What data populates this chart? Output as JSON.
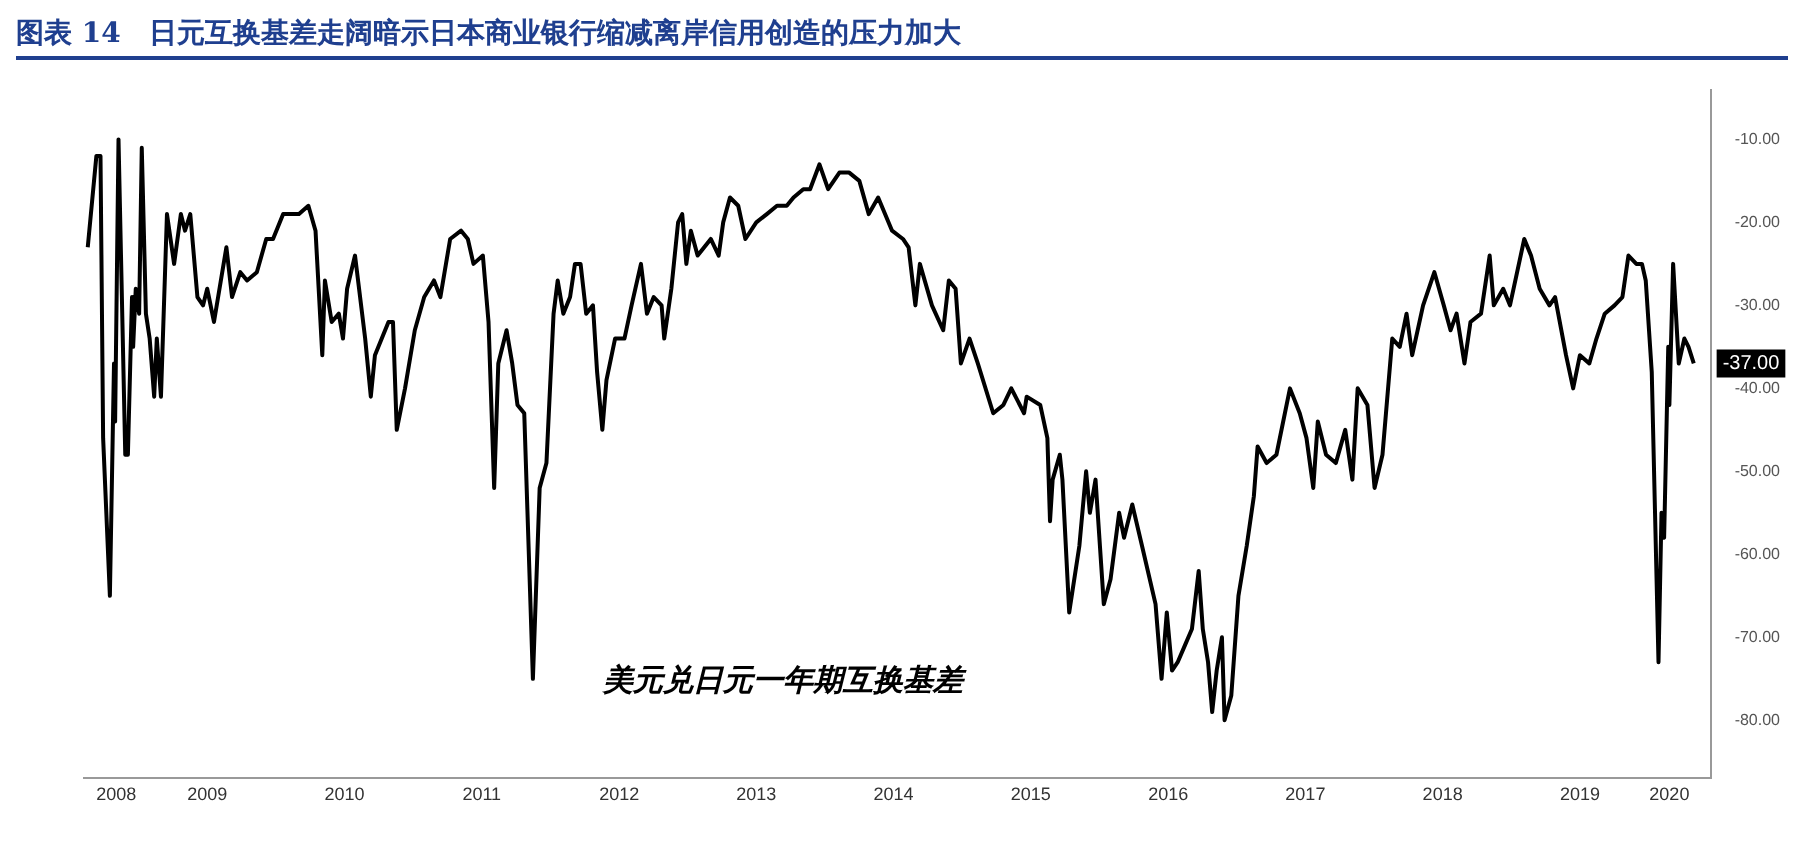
{
  "chart_data": {
    "type": "line",
    "title": "图表 14　日元互换基差走阔暗示日本商业银行缩减离岸信用创造的压力加大",
    "x": [
      "2008-08-17",
      "2008-09-09",
      "2008-09-20",
      "2008-09-27",
      "2008-10-15",
      "2008-10-26",
      "2008-10-29",
      "2008-11-07",
      "2008-11-25",
      "2008-12-02",
      "2008-12-13",
      "2008-12-16",
      "2008-12-23",
      "2009-01-01",
      "2009-01-08",
      "2009-01-19",
      "2009-01-29",
      "2009-02-10",
      "2009-02-17",
      "2009-02-28",
      "2009-03-16",
      "2009-04-04",
      "2009-04-22",
      "2009-05-03",
      "2009-05-17",
      "2009-06-05",
      "2009-06-20",
      "2009-07-01",
      "2009-07-19",
      "2009-08-21",
      "2009-09-05",
      "2009-09-27",
      "2009-10-15",
      "2009-11-10",
      "2009-12-05",
      "2009-12-23",
      "2010-01-19",
      "2010-03-02",
      "2010-03-27",
      "2010-04-15",
      "2010-05-03",
      "2010-05-10",
      "2010-05-28",
      "2010-06-16",
      "2010-06-27",
      "2010-07-08",
      "2010-07-29",
      "2010-08-25",
      "2010-09-09",
      "2010-09-20",
      "2010-10-26",
      "2010-11-07",
      "2010-11-17",
      "2010-12-09",
      "2011-01-04",
      "2011-01-29",
      "2011-02-24",
      "2011-03-13",
      "2011-04-08",
      "2011-05-07",
      "2011-05-25",
      "2011-06-09",
      "2011-07-04",
      "2011-07-19",
      "2011-08-03",
      "2011-08-14",
      "2011-09-05",
      "2011-09-20",
      "2011-10-04",
      "2011-10-22",
      "2011-11-14",
      "2011-12-02",
      "2011-12-20",
      "2012-01-08",
      "2012-01-19",
      "2012-02-03",
      "2012-02-21",
      "2012-03-05",
      "2012-03-20",
      "2012-04-04",
      "2012-04-22",
      "2012-05-03",
      "2012-05-17",
      "2012-05-28",
      "2012-06-20",
      "2012-07-15",
      "2012-08-03",
      "2012-08-28",
      "2012-09-13",
      "2012-10-01",
      "2012-10-22",
      "2012-10-29",
      "2012-11-17",
      "2012-12-05",
      "2012-12-16",
      "2012-12-27",
      "2013-01-08",
      "2013-01-26",
      "2013-03-02",
      "2013-03-23",
      "2013-04-04",
      "2013-04-22",
      "2013-05-14",
      "2013-06-02",
      "2013-07-01",
      "2013-07-29",
      "2013-08-25",
      "2013-09-20",
      "2013-10-08",
      "2013-11-03",
      "2013-11-21",
      "2013-12-16",
      "2014-01-08",
      "2014-02-07",
      "2014-03-05",
      "2014-04-01",
      "2014-04-26",
      "2014-05-21",
      "2014-06-27",
      "2014-07-26",
      "2014-08-10",
      "2014-08-28",
      "2014-09-09",
      "2014-10-11",
      "2014-11-10",
      "2014-11-25",
      "2014-12-13",
      "2014-12-27",
      "2015-01-19",
      "2015-02-10",
      "2015-03-23",
      "2015-04-19",
      "2015-05-10",
      "2015-06-13",
      "2015-06-20",
      "2015-07-26",
      "2015-08-14",
      "2015-08-21",
      "2015-08-28",
      "2015-09-16",
      "2015-09-23",
      "2015-10-11",
      "2015-11-07",
      "2015-11-25",
      "2015-12-05",
      "2015-12-20",
      "2016-01-11",
      "2016-01-29",
      "2016-02-21",
      "2016-03-05",
      "2016-03-27",
      "2016-04-22",
      "2016-05-28",
      "2016-06-13",
      "2016-06-27",
      "2016-07-11",
      "2016-07-26",
      "2016-08-14",
      "2016-09-02",
      "2016-09-20",
      "2016-10-01",
      "2016-10-15",
      "2016-10-26",
      "2016-11-07",
      "2016-11-21",
      "2016-11-28",
      "2016-12-16",
      "2017-01-04",
      "2017-01-26",
      "2017-02-14",
      "2017-02-24",
      "2017-03-20",
      "2017-04-15",
      "2017-05-21",
      "2017-06-16",
      "2017-07-04",
      "2017-07-22",
      "2017-08-03",
      "2017-08-25",
      "2017-09-20",
      "2017-10-15",
      "2017-11-03",
      "2017-11-17",
      "2017-12-13",
      "2018-01-01",
      "2018-01-22",
      "2018-02-17",
      "2018-03-09",
      "2018-03-27",
      "2018-04-11",
      "2018-05-10",
      "2018-06-09",
      "2018-07-04",
      "2018-07-22",
      "2018-08-07",
      "2018-08-28",
      "2018-09-13",
      "2018-10-11",
      "2018-11-03",
      "2018-11-14",
      "2018-12-09",
      "2018-12-27",
      "2019-02-03",
      "2019-02-21",
      "2019-03-16",
      "2019-04-11",
      "2019-04-26",
      "2019-05-25",
      "2019-06-13",
      "2019-07-01",
      "2019-07-26",
      "2019-08-14",
      "2019-09-05",
      "2019-10-01",
      "2019-10-22",
      "2019-11-07",
      "2019-11-28",
      "2019-12-13",
      "2019-12-23",
      "2020-01-08",
      "2020-01-26",
      "2020-02-03",
      "2020-02-10",
      "2020-02-21",
      "2020-02-24",
      "2020-03-05",
      "2020-03-20",
      "2020-04-04",
      "2020-04-15",
      "2020-04-29"
    ],
    "series": [
      {
        "color": "#000000",
        "values": [
          -23,
          -12,
          -12,
          -46,
          -65,
          -37,
          -44,
          -10,
          -48,
          -48,
          -29,
          -35,
          -28,
          -31,
          -11,
          -31,
          -34,
          -41,
          -34,
          -41,
          -19,
          -25,
          -19,
          -21,
          -19,
          -29,
          -30,
          -28,
          -32,
          -23,
          -29,
          -26,
          -27,
          -26,
          -22,
          -22,
          -19,
          -19,
          -18,
          -21,
          -36,
          -27,
          -32,
          -31,
          -34,
          -28,
          -24,
          -34,
          -41,
          -36,
          -32,
          -32,
          -45,
          -40,
          -33,
          -29,
          -27,
          -29,
          -22,
          -21,
          -22,
          -25,
          -24,
          -32,
          -52,
          -37,
          -33,
          -37,
          -42,
          -43,
          -75,
          -52,
          -49,
          -31,
          -27,
          -31,
          -29,
          -25,
          -25,
          -31,
          -30,
          -38,
          -45,
          -39,
          -34,
          -34,
          -30,
          -25,
          -31,
          -29,
          -30,
          -34,
          -28,
          -20,
          -19,
          -25,
          -21,
          -24,
          -22,
          -24,
          -20,
          -17,
          -18,
          -22,
          -20,
          -19,
          -18,
          -18,
          -17,
          -16,
          -16,
          -13,
          -16,
          -14,
          -14,
          -15,
          -19,
          -17,
          -21,
          -22,
          -23,
          -30,
          -25,
          -30,
          -33,
          -27,
          -28,
          -37,
          -34,
          -37,
          -43,
          -42,
          -40,
          -43,
          -41,
          -42,
          -46,
          -56,
          -51,
          -48,
          -51,
          -67,
          -59,
          -50,
          -55,
          -51,
          -66,
          -63,
          -55,
          -58,
          -54,
          -59,
          -66,
          -75,
          -67,
          -74,
          -73,
          -71,
          -69,
          -62,
          -69,
          -73,
          -79,
          -74,
          -70,
          -80,
          -77,
          -65,
          -59,
          -53,
          -47,
          -49,
          -48,
          -40,
          -43,
          -46,
          -52,
          -44,
          -48,
          -49,
          -45,
          -51,
          -40,
          -42,
          -52,
          -48,
          -34,
          -35,
          -31,
          -36,
          -30,
          -26,
          -30,
          -33,
          -31,
          -37,
          -32,
          -31,
          -24,
          -30,
          -28,
          -30,
          -22,
          -24,
          -28,
          -30,
          -29,
          -36,
          -40,
          -36,
          -37,
          -34,
          -31,
          -30,
          -29,
          -24,
          -25,
          -25,
          -27,
          -38,
          -73,
          -55,
          -58,
          -35,
          -42,
          -25,
          -37,
          -34,
          -35,
          -37
        ]
      }
    ],
    "xlim": [
      "2008-08-07",
      "2020-06-13"
    ],
    "xticks": [
      {
        "value": "2008-11-01",
        "label": "2008"
      },
      {
        "value": "2009-07-01",
        "label": "2009"
      },
      {
        "value": "2010-07-01",
        "label": "2010"
      },
      {
        "value": "2011-07-01",
        "label": "2011"
      },
      {
        "value": "2012-07-01",
        "label": "2012"
      },
      {
        "value": "2013-07-01",
        "label": "2013"
      },
      {
        "value": "2014-07-01",
        "label": "2014"
      },
      {
        "value": "2015-07-01",
        "label": "2015"
      },
      {
        "value": "2016-07-01",
        "label": "2016"
      },
      {
        "value": "2017-07-01",
        "label": "2017"
      },
      {
        "value": "2018-07-01",
        "label": "2018"
      },
      {
        "value": "2019-07-01",
        "label": "2019"
      },
      {
        "value": "2020-02-24",
        "label": "2020"
      }
    ],
    "ylim": [
      -87,
      -4
    ],
    "yticks": [
      {
        "value": -10,
        "label": "-10.00"
      },
      {
        "value": -20,
        "label": "-20.00"
      },
      {
        "value": -30,
        "label": "-30.00"
      },
      {
        "value": -40,
        "label": "-40.00"
      },
      {
        "value": -50,
        "label": "-50.00"
      },
      {
        "value": -60,
        "label": "-60.00"
      },
      {
        "value": -70,
        "label": "-70.00"
      },
      {
        "value": -80,
        "label": "-80.00"
      }
    ],
    "annotations": [
      "美元兑日元一年期互换基差",
      {
        "text": "-37.00",
        "x": "2020-04-29",
        "y": -37
      }
    ],
    "grid": false,
    "legend": false,
    "marker": "none",
    "line_style": "solid"
  }
}
